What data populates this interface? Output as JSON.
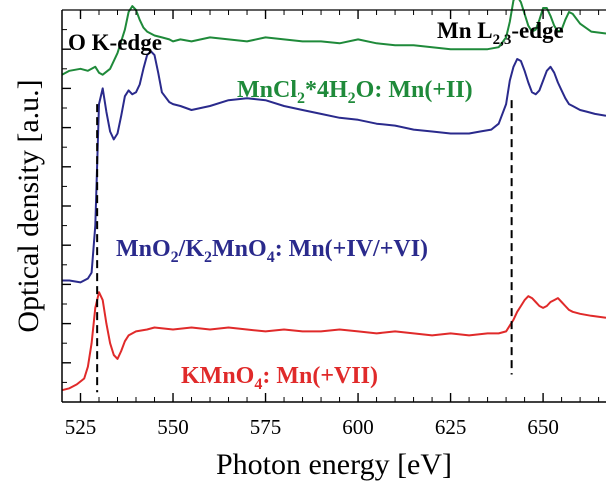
{
  "chart_data": {
    "type": "line",
    "xlabel": "Photon energy [eV]",
    "ylabel": "Optical density [a.u.]",
    "xlim": [
      520,
      667
    ],
    "ylim": [
      0,
      10
    ],
    "xticks": [
      525,
      550,
      575,
      600,
      625,
      650
    ],
    "xtick_labels": [
      "525",
      "550",
      "575",
      "600",
      "625",
      "650"
    ],
    "y_minor_ticks": [
      0.5,
      1.5,
      2.5,
      3.5,
      4.5,
      5.5,
      6.5,
      7.5,
      8.5,
      9.5
    ],
    "y_major_ticks": [
      1,
      2,
      3,
      4,
      5,
      6,
      7,
      8,
      9
    ],
    "y_tick_labels_shown": false,
    "grid": false,
    "edge_markers": [
      {
        "label": "O K-edge",
        "x": 529.5
      },
      {
        "label_main": "Mn L",
        "label_sub": "2,3",
        "label_tail": "-edge",
        "x": 641.5
      }
    ],
    "series": [
      {
        "label_parts": [
          {
            "t": "MnCl",
            "s": false
          },
          {
            "t": "2",
            "s": true
          },
          {
            "t": "*4H",
            "s": false
          },
          {
            "t": "2",
            "s": true
          },
          {
            "t": "O: Mn(+II)",
            "s": false
          }
        ],
        "color": "#1f8a3a",
        "x": [
          520,
          522,
          525,
          527,
          529,
          530,
          531,
          533,
          535,
          537,
          538,
          539,
          540,
          541,
          542,
          543,
          545,
          547,
          549,
          550,
          552,
          555,
          560,
          565,
          570,
          575,
          580,
          585,
          590,
          595,
          600,
          605,
          610,
          615,
          620,
          625,
          630,
          635,
          638,
          640,
          641,
          642,
          643,
          644,
          645,
          646,
          647,
          648,
          649,
          650,
          651,
          652,
          653,
          654,
          655,
          656,
          657,
          658,
          660,
          663,
          667
        ],
        "y": [
          8.35,
          8.45,
          8.5,
          8.45,
          8.55,
          8.4,
          8.35,
          8.5,
          8.9,
          9.5,
          9.95,
          10.1,
          10.0,
          9.75,
          9.55,
          9.45,
          9.35,
          9.3,
          9.25,
          9.2,
          9.25,
          9.2,
          9.3,
          9.25,
          9.2,
          9.3,
          9.25,
          9.2,
          9.2,
          9.15,
          9.25,
          9.15,
          9.1,
          9.1,
          9.05,
          9.0,
          9.0,
          9.0,
          9.05,
          9.3,
          9.7,
          10.25,
          10.35,
          10.2,
          9.9,
          9.6,
          9.45,
          9.5,
          9.75,
          10.05,
          10.05,
          9.85,
          9.6,
          9.45,
          9.5,
          9.75,
          9.95,
          9.9,
          9.65,
          9.45,
          9.4
        ]
      },
      {
        "label_parts": [
          {
            "t": "MnO",
            "s": false
          },
          {
            "t": "2",
            "s": true
          },
          {
            "t": "/K",
            "s": false
          },
          {
            "t": "2",
            "s": true
          },
          {
            "t": "MnO",
            "s": false
          },
          {
            "t": "4",
            "s": true
          },
          {
            "t": ": Mn(+IV/+VI)",
            "s": false
          }
        ],
        "color": "#2a2a8c",
        "x": [
          520,
          522,
          525,
          527,
          528,
          529,
          530,
          531,
          532,
          533,
          534,
          535,
          536,
          537,
          538,
          539,
          540,
          541,
          542,
          543,
          544,
          545,
          546,
          547,
          549,
          550,
          552,
          555,
          560,
          565,
          570,
          575,
          580,
          585,
          590,
          595,
          600,
          605,
          610,
          615,
          620,
          625,
          630,
          633,
          636,
          638,
          640,
          641,
          642,
          643,
          644,
          645,
          646,
          647,
          648,
          649,
          650,
          651,
          652,
          653,
          654,
          655,
          656,
          657,
          658,
          659,
          660,
          662,
          664,
          667
        ],
        "y": [
          3.1,
          3.1,
          3.05,
          3.15,
          3.3,
          4.5,
          7.6,
          8.0,
          7.4,
          6.9,
          6.7,
          6.85,
          7.3,
          7.8,
          7.95,
          7.85,
          7.9,
          8.1,
          8.5,
          8.85,
          8.95,
          8.85,
          8.4,
          7.9,
          7.65,
          7.6,
          7.55,
          7.45,
          7.55,
          7.7,
          7.75,
          7.7,
          7.55,
          7.45,
          7.35,
          7.25,
          7.2,
          7.1,
          7.05,
          6.95,
          6.9,
          6.85,
          6.85,
          6.9,
          6.95,
          7.1,
          7.6,
          8.2,
          8.55,
          8.75,
          8.7,
          8.45,
          8.15,
          7.9,
          7.85,
          7.95,
          8.2,
          8.45,
          8.55,
          8.4,
          8.15,
          7.95,
          7.75,
          7.6,
          7.55,
          7.5,
          7.45,
          7.4,
          7.35,
          7.3
        ]
      },
      {
        "label_parts": [
          {
            "t": "KMnO",
            "s": false
          },
          {
            "t": "4",
            "s": true
          },
          {
            "t": ": Mn(+VII)",
            "s": false
          }
        ],
        "color": "#e02a2a",
        "x": [
          520,
          522,
          524,
          526,
          527,
          528,
          529,
          530,
          531,
          532,
          533,
          534,
          535,
          536,
          537,
          538,
          540,
          543,
          545,
          550,
          555,
          560,
          565,
          570,
          575,
          580,
          585,
          590,
          595,
          600,
          605,
          610,
          615,
          620,
          625,
          630,
          635,
          638,
          640,
          641,
          642,
          643,
          644,
          645,
          646,
          647,
          648,
          649,
          650,
          651,
          652,
          653,
          654,
          655,
          656,
          657,
          658,
          660,
          663,
          667
        ],
        "y": [
          0.3,
          0.35,
          0.45,
          0.6,
          0.9,
          1.5,
          2.4,
          2.8,
          2.6,
          2.0,
          1.5,
          1.2,
          1.1,
          1.3,
          1.55,
          1.7,
          1.8,
          1.85,
          1.9,
          1.85,
          1.9,
          1.85,
          1.9,
          1.85,
          1.8,
          1.85,
          1.8,
          1.8,
          1.85,
          1.8,
          1.75,
          1.8,
          1.75,
          1.7,
          1.75,
          1.7,
          1.75,
          1.75,
          1.8,
          1.95,
          2.1,
          2.3,
          2.45,
          2.6,
          2.7,
          2.65,
          2.55,
          2.45,
          2.4,
          2.45,
          2.55,
          2.6,
          2.65,
          2.55,
          2.45,
          2.35,
          2.3,
          2.25,
          2.2,
          2.15
        ]
      }
    ]
  }
}
